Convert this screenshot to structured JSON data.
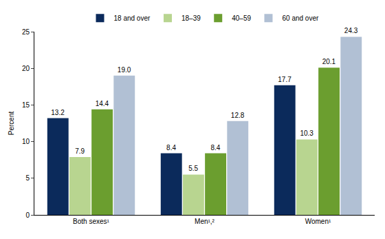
{
  "chart_data": {
    "type": "bar",
    "y_label": "Percent",
    "categories": [
      "Both sexes¹",
      "Men¹,²",
      "Women¹"
    ],
    "series": [
      {
        "name": "18 and over",
        "color": "#0b2a5b",
        "values": [
          13.2,
          8.4,
          17.7
        ],
        "value_labels": [
          "13.2",
          "8.4",
          "17.7"
        ]
      },
      {
        "name": "18–39",
        "color": "#b8d590",
        "values": [
          7.9,
          5.5,
          10.3
        ],
        "value_labels": [
          "7.9",
          "5.5",
          "10.3"
        ]
      },
      {
        "name": "40–59",
        "color": "#6b9e2f",
        "values": [
          14.4,
          8.4,
          20.1
        ],
        "value_labels": [
          "14.4",
          "8.4",
          "20.1"
        ]
      },
      {
        "name": "60 and over",
        "color": "#b1c0d4",
        "values": [
          19.0,
          12.8,
          24.3
        ],
        "value_labels": [
          "19.0",
          "12.8",
          "24.3"
        ]
      }
    ],
    "ylim": [
      0,
      25
    ],
    "yticks": [
      0,
      5,
      10,
      15,
      20,
      25
    ],
    "grid": false,
    "legend": "top",
    "data_labels": true
  }
}
